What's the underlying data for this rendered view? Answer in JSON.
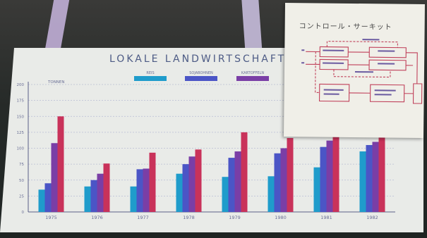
{
  "scene": {
    "chart_title": "LOKALE LANDWIRTSCHAFTSPR",
    "circuit_title": "コントロール・サーキット"
  },
  "chart_data": {
    "type": "bar",
    "title": "LOKALE LANDWIRTSCHAFTSPR",
    "ylabel": "TONNEN",
    "ylim": [
      0,
      200
    ],
    "ticks": [
      0,
      25,
      50,
      75,
      100,
      125,
      150,
      175,
      200
    ],
    "categories": [
      "1975",
      "1976",
      "1977",
      "1978",
      "1979",
      "1980",
      "1981",
      "1982"
    ],
    "series": [
      {
        "name": "REIS",
        "color": "#1f9ccb",
        "values": [
          35,
          40,
          40,
          60,
          55,
          56,
          70,
          95
        ]
      },
      {
        "name": "SOJABOHNEN",
        "color": "#4b55c6",
        "values": [
          45,
          50,
          67,
          75,
          85,
          92,
          102,
          105
        ]
      },
      {
        "name": "KARTOFFELN",
        "color": "#7a3ea6",
        "values": [
          108,
          60,
          68,
          87,
          95,
          100,
          112,
          110
        ]
      },
      {
        "name": "",
        "color": "#c9325a",
        "values": [
          150,
          76,
          93,
          98,
          125,
          116,
          120,
          118
        ]
      }
    ],
    "legend_position": "top",
    "grid": true
  }
}
